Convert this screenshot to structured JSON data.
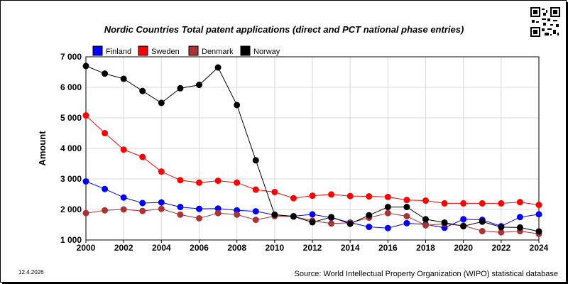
{
  "chart_data": {
    "type": "line",
    "title": "Nordic Countries Total patent applications (direct and PCT national phase entries)",
    "xlabel": "",
    "ylabel": "Amount",
    "x": [
      2000,
      2001,
      2002,
      2003,
      2004,
      2005,
      2006,
      2007,
      2008,
      2009,
      2010,
      2011,
      2012,
      2013,
      2014,
      2015,
      2016,
      2017,
      2018,
      2019,
      2020,
      2021,
      2022,
      2023,
      2024
    ],
    "xlim": [
      2000,
      2024
    ],
    "xticks": [
      "2000",
      "2002",
      "2004",
      "2006",
      "2008",
      "2010",
      "2012",
      "2014",
      "2016",
      "2018",
      "2020",
      "2022",
      "2024"
    ],
    "ylim": [
      1000,
      7000
    ],
    "yticks": [
      "1 000",
      "2 000",
      "3 000",
      "4 000",
      "5 000",
      "6 000",
      "7 000"
    ],
    "grid": true,
    "legend_position": "top",
    "series": [
      {
        "name": "Finland",
        "color": "#0000ff",
        "values": [
          2920,
          2670,
          2390,
          2210,
          2230,
          2080,
          2020,
          2030,
          1970,
          1940,
          1820,
          1780,
          1840,
          1730,
          1570,
          1430,
          1390,
          1550,
          1510,
          1400,
          1680,
          1660,
          1450,
          1750,
          1840
        ]
      },
      {
        "name": "Sweden",
        "color": "#ff0000",
        "values": [
          5080,
          4500,
          3960,
          3720,
          3240,
          2960,
          2880,
          2940,
          2880,
          2650,
          2570,
          2370,
          2450,
          2490,
          2440,
          2430,
          2410,
          2310,
          2290,
          2200,
          2200,
          2200,
          2200,
          2240,
          2150
        ]
      },
      {
        "name": "Denmark",
        "color": "#aa3333",
        "values": [
          1880,
          1970,
          2000,
          1950,
          2020,
          1830,
          1710,
          1880,
          1830,
          1660,
          1780,
          1770,
          1630,
          1540,
          1560,
          1730,
          1880,
          1780,
          1480,
          1530,
          1470,
          1290,
          1250,
          1290,
          1200
        ]
      },
      {
        "name": "Norway",
        "color": "#000000",
        "values": [
          6700,
          6450,
          6280,
          5880,
          5490,
          5970,
          6080,
          6650,
          5420,
          3610,
          1830,
          1770,
          1580,
          1750,
          1530,
          1810,
          2080,
          2080,
          1680,
          1570,
          1450,
          1600,
          1420,
          1410,
          1280
        ]
      }
    ]
  },
  "date": "12.4.2026",
  "source": "Source: World Intellectual Property Organization (WIPO) statistical database"
}
